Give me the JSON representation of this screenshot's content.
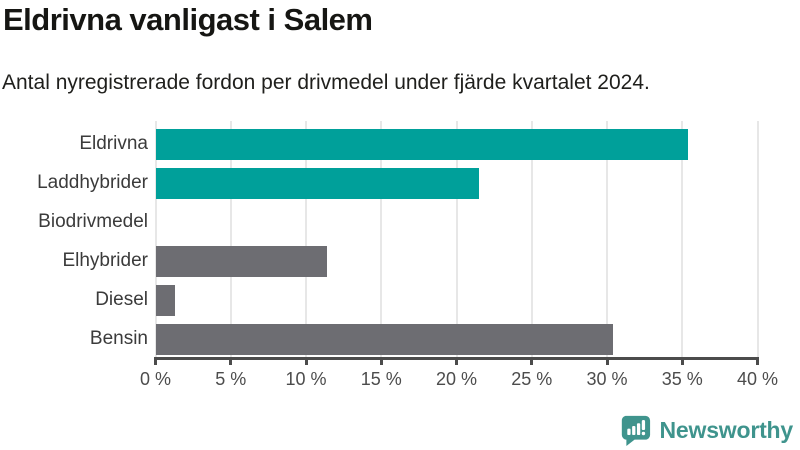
{
  "header": {
    "title": "Eldrivna vanligast i Salem",
    "subtitle": "Antal nyregistrerade fordon per drivmedel under fjärde kvartalet 2024."
  },
  "chart_data": {
    "type": "bar",
    "orientation": "horizontal",
    "title": "Eldrivna vanligast i Salem",
    "subtitle": "Antal nyregistrerade fordon per drivmedel under fjärde kvartalet 2024.",
    "categories": [
      "Eldrivna",
      "Laddhybrider",
      "Biodrivmedel",
      "Elhybrider",
      "Diesel",
      "Bensin"
    ],
    "values": [
      35.4,
      21.5,
      0,
      11.4,
      1.3,
      30.4
    ],
    "unit": "%",
    "bar_colors": [
      "#00A09A",
      "#00A09A",
      "#6D6D72",
      "#6D6D72",
      "#6D6D72",
      "#6D6D72"
    ],
    "highlight_color": "#00A09A",
    "default_color": "#6D6D72",
    "xlim": [
      0,
      40
    ],
    "x_ticks": [
      0,
      5,
      10,
      15,
      20,
      25,
      30,
      35,
      40
    ],
    "x_tick_labels": [
      "0 %",
      "5 %",
      "10 %",
      "15 %",
      "20 %",
      "25 %",
      "30 %",
      "35 %",
      "40 %"
    ],
    "grid": true,
    "grid_color": "#e7e7e7",
    "axis_color": "#4c4c4c",
    "legend": "none"
  },
  "footer": {
    "brand": "Newsworthy",
    "brand_color": "#3F948D",
    "logo_icon": "bar-chart-speech-bubble-icon"
  }
}
